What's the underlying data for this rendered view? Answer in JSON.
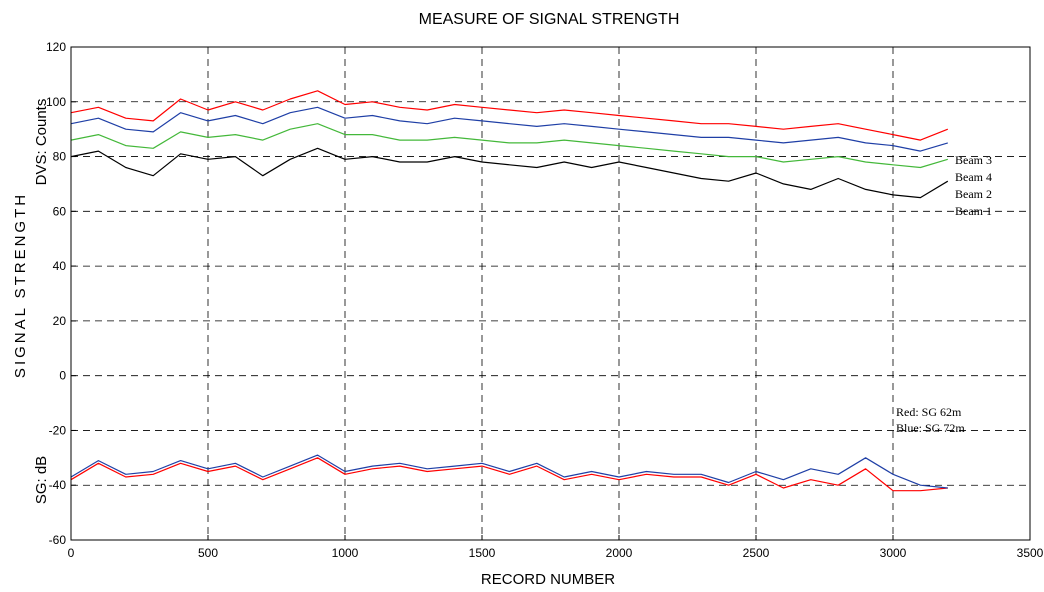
{
  "chart_data": {
    "type": "line",
    "title": "MEASURE OF SIGNAL STRENGTH",
    "xlabel": "RECORD NUMBER",
    "ylabel": "SIGNAL STRENGTH",
    "ylabel_upper": "DVS: Counts",
    "ylabel_lower": "SG: dB",
    "xlim": [
      0,
      3500
    ],
    "ylim": [
      -60,
      120
    ],
    "x_ticks": [
      0,
      500,
      1000,
      1500,
      2000,
      2500,
      3000,
      3500
    ],
    "y_ticks": [
      -60,
      -40,
      -20,
      0,
      20,
      40,
      60,
      80,
      100,
      120
    ],
    "grid": true,
    "grid_style": "dashed",
    "x": [
      0,
      100,
      200,
      300,
      400,
      500,
      600,
      700,
      800,
      900,
      1000,
      1100,
      1200,
      1300,
      1400,
      1500,
      1600,
      1700,
      1800,
      1900,
      2000,
      2100,
      2200,
      2300,
      2400,
      2500,
      2600,
      2700,
      2800,
      2900,
      3000,
      3100,
      3200
    ],
    "series": [
      {
        "name": "Beam 3",
        "color": "#ff0000",
        "values": [
          96,
          98,
          94,
          93,
          101,
          97,
          100,
          97,
          101,
          104,
          99,
          100,
          98,
          97,
          99,
          98,
          97,
          96,
          97,
          96,
          95,
          94,
          93,
          92,
          92,
          91,
          90,
          91,
          92,
          90,
          88,
          86,
          90
        ]
      },
      {
        "name": "Beam 4",
        "color": "#1f3fa6",
        "values": [
          92,
          94,
          90,
          89,
          96,
          93,
          95,
          92,
          96,
          98,
          94,
          95,
          93,
          92,
          94,
          93,
          92,
          91,
          92,
          91,
          90,
          89,
          88,
          87,
          87,
          86,
          85,
          86,
          87,
          85,
          84,
          82,
          85
        ]
      },
      {
        "name": "Beam 2",
        "color": "#44b83a",
        "values": [
          86,
          88,
          84,
          83,
          89,
          87,
          88,
          86,
          90,
          92,
          88,
          88,
          86,
          86,
          87,
          86,
          85,
          85,
          86,
          85,
          84,
          83,
          82,
          81,
          80,
          80,
          78,
          79,
          80,
          78,
          77,
          76,
          79
        ]
      },
      {
        "name": "Beam 1",
        "color": "#000000",
        "values": [
          80,
          82,
          76,
          73,
          81,
          79,
          80,
          73,
          79,
          83,
          79,
          80,
          78,
          78,
          80,
          78,
          77,
          76,
          78,
          76,
          78,
          76,
          74,
          72,
          71,
          74,
          70,
          68,
          72,
          68,
          66,
          65,
          71
        ]
      },
      {
        "name": "Red:  SG 62m",
        "color": "#ff0000",
        "values": [
          -38,
          -32,
          -37,
          -36,
          -32,
          -35,
          -33,
          -38,
          -34,
          -30,
          -36,
          -34,
          -33,
          -35,
          -34,
          -33,
          -36,
          -33,
          -38,
          -36,
          -38,
          -36,
          -37,
          -37,
          -40,
          -36,
          -41,
          -38,
          -40,
          -34,
          -42,
          -42,
          -41
        ]
      },
      {
        "name": "Blue: SG 72m",
        "color": "#1f3fa6",
        "values": [
          -37,
          -31,
          -36,
          -35,
          -31,
          -34,
          -32,
          -37,
          -33,
          -29,
          -35,
          -33,
          -32,
          -34,
          -33,
          -32,
          -35,
          -32,
          -37,
          -35,
          -37,
          -35,
          -36,
          -36,
          -39,
          -35,
          -38,
          -34,
          -36,
          -30,
          -36,
          -40,
          -41
        ]
      }
    ],
    "legend": [
      "Beam 3",
      "Beam 4",
      "Beam 2",
      "Beam 1"
    ],
    "legend_placement": "right, beside line ends",
    "annotation_lines": [
      "Red:  SG 62m",
      "Blue: SG 72m"
    ]
  }
}
